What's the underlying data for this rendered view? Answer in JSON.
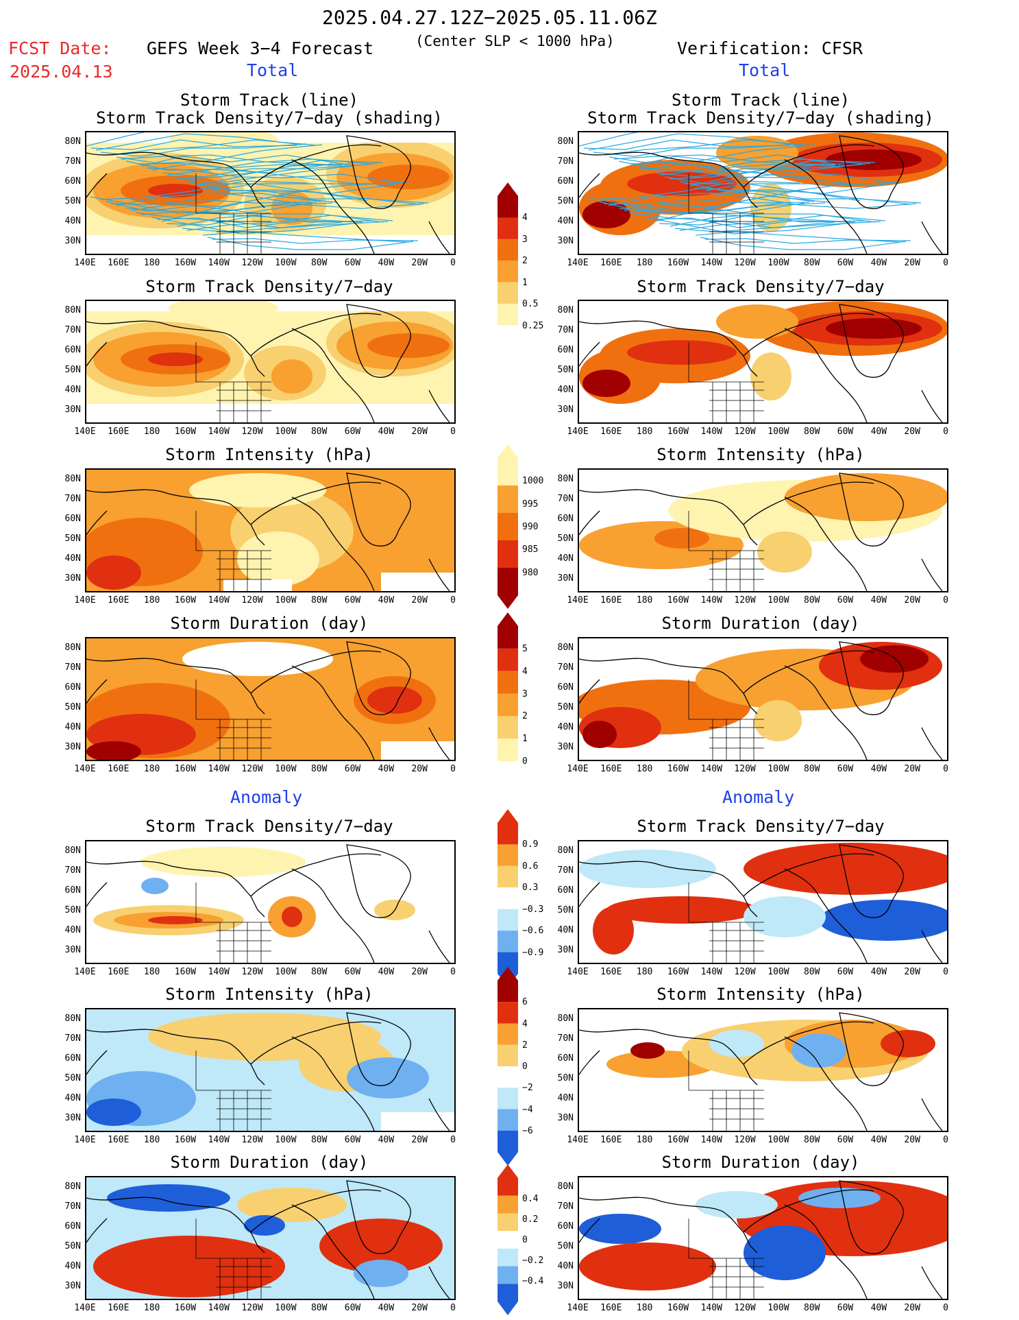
{
  "header": {
    "period": "2025.04.27.12Z−2025.05.11.06Z",
    "fcst_label": "FCST Date:",
    "fcst_date": "2025.04.13",
    "left_title": "GEFS Week 3−4 Forecast",
    "center_note": "(Center SLP < 1000 hPa)",
    "right_title": "Verification: CFSR"
  },
  "section_labels": {
    "total": "Total",
    "anomaly": "Anomaly"
  },
  "panel_titles": {
    "track_line": "Storm Track (line)",
    "track_shading": "Storm Track Density/7−day (shading)",
    "density": "Storm Track Density/7−day",
    "intensity": "Storm Intensity (hPa)",
    "duration": "Storm Duration (day)"
  },
  "axes": {
    "lat_labels": [
      "80N",
      "70N",
      "60N",
      "50N",
      "40N",
      "30N"
    ],
    "lon_labels": [
      "140E",
      "160E",
      "180",
      "160W",
      "140W",
      "120W",
      "100W",
      "80W",
      "60W",
      "40W",
      "20W",
      "0"
    ]
  },
  "colorbars": {
    "density_total": [
      "4",
      "3",
      "2",
      "1",
      "0.5",
      "0.25"
    ],
    "intensity_total": [
      "1000",
      "995",
      "990",
      "985",
      "980"
    ],
    "duration_total": [
      "5",
      "4",
      "3",
      "2",
      "1",
      "0"
    ],
    "density_anom": [
      "0.9",
      "0.6",
      "0.3",
      "−0.3",
      "−0.6",
      "−0.9"
    ],
    "intensity_anom": [
      "6",
      "4",
      "2",
      "0",
      "−2",
      "−4",
      "−6"
    ],
    "duration_anom": [
      "0.4",
      "0.2",
      "0",
      "−0.2",
      "−0.4"
    ]
  },
  "colors": {
    "dark_red": "#a00000",
    "red": "#e03010",
    "orange": "#f07010",
    "light_orange": "#f8a030",
    "yellow": "#f8d070",
    "pale_yellow": "#fff3b0",
    "light_blue": "#bfe8f8",
    "mid_blue": "#6fb0f0",
    "dark_blue": "#1e5ed8",
    "track_line": "#29a8e0",
    "title_red": "#e8282a",
    "title_blue": "#1f3fe6"
  }
}
